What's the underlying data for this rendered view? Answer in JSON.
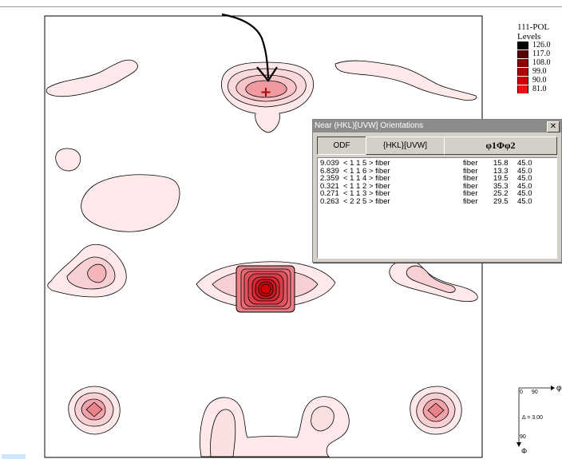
{
  "legend": {
    "title_line1": "111-POL",
    "title_line2": "Levels",
    "levels": [
      {
        "value": "126.0",
        "color": "#000000"
      },
      {
        "value": "117.0",
        "color": "#5a0000"
      },
      {
        "value": "108.0",
        "color": "#8a0000"
      },
      {
        "value": "99.0",
        "color": "#b00000"
      },
      {
        "value": "90.0",
        "color": "#d00000"
      },
      {
        "value": "81.0",
        "color": "#ee1010"
      }
    ]
  },
  "dialog": {
    "title": "Near (HKL)[UVW] Orientations",
    "close_label": "✕",
    "tabs": {
      "odf": "ODF",
      "hklu": "{HKL}[UVW]",
      "angles": "φ1Φφ2"
    },
    "rows": [
      {
        "odf": "9.039",
        "hkl": "< 1  1  5 > fiber",
        "type": "fiber",
        "a": "15.8",
        "b": "45.0"
      },
      {
        "odf": "6.839",
        "hkl": "< 1  1  6 > fiber",
        "type": "fiber",
        "a": "13.3",
        "b": "45.0"
      },
      {
        "odf": "2.359",
        "hkl": "< 1  1  4 > fiber",
        "type": "fiber",
        "a": "19.5",
        "b": "45.0"
      },
      {
        "odf": "0.321",
        "hkl": "< 1  1  2 > fiber",
        "type": "fiber",
        "a": "35.3",
        "b": "45.0"
      },
      {
        "odf": "0.271",
        "hkl": "< 1  1  3 > fiber",
        "type": "fiber",
        "a": "25.2",
        "b": "45.0"
      },
      {
        "odf": "0.263",
        "hkl": "< 2  2  5 > fiber",
        "type": "fiber",
        "a": "29.5",
        "b": "45.0"
      }
    ]
  },
  "key": {
    "x0": "0",
    "x90": "90",
    "phi2": "φ2",
    "delta": "Δ = 3.00",
    "y90": "90",
    "phi": "Φ"
  },
  "colors": {
    "contour_fill_light": "#fde9ea",
    "contour_fill_mid": "#f7c4c7",
    "contour_fill_dark": "#e98087",
    "core_red": "#d40000"
  }
}
